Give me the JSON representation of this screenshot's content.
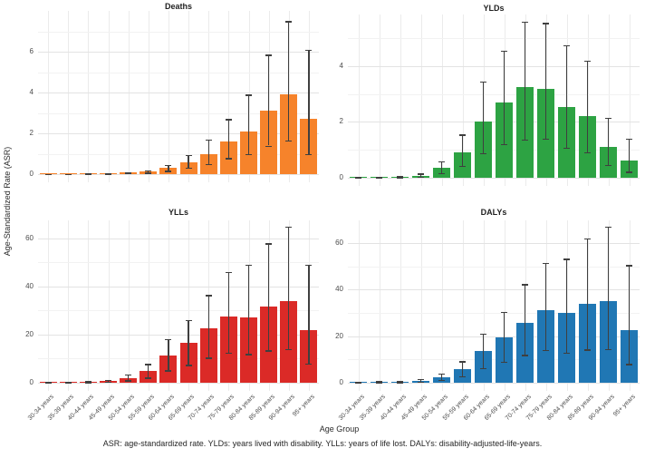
{
  "figure": {
    "y_axis_label": "Age-Standardized Rate (ASR)",
    "x_axis_label": "Age Group",
    "caption": "ASR: age-standardized rate. YLDs: years lived with disability. YLLs: years of life lost. DALYs: disability-adjusted-life-years."
  },
  "categories": [
    "30-34 years",
    "35-39 years",
    "40-44 years",
    "45-49 years",
    "50-54 years",
    "55-59 years",
    "60-64 years",
    "65-69 years",
    "70-74 years",
    "75-79 years",
    "80-84 years",
    "85-89 years",
    "90-94 years",
    "95+ years"
  ],
  "colors": {
    "error_bar": "#3F3F3F",
    "grid_major": "#E3E3E3",
    "grid_minor": "#F2F2F2",
    "tick_text": "#4D4D4D"
  },
  "chart_data": [
    {
      "id": "deaths",
      "type": "bar",
      "title": "Deaths",
      "color": "#F6832B",
      "ymax": 8.0,
      "yticks": [
        0,
        2,
        4,
        6
      ],
      "yticks_minor": [
        1,
        3,
        5,
        7
      ],
      "values": [
        0.01,
        0.01,
        0.02,
        0.04,
        0.07,
        0.12,
        0.3,
        0.6,
        1.0,
        1.6,
        2.1,
        3.1,
        3.9,
        2.7
      ],
      "ci_low": [
        0.01,
        0.01,
        0.01,
        0.02,
        0.04,
        0.07,
        0.16,
        0.32,
        0.5,
        0.78,
        1.0,
        1.4,
        1.65,
        1.0
      ],
      "ci_high": [
        0.02,
        0.02,
        0.03,
        0.06,
        0.1,
        0.18,
        0.45,
        0.95,
        1.7,
        2.7,
        3.9,
        5.85,
        7.5,
        6.1
      ],
      "show_x_labels": false
    },
    {
      "id": "ylds",
      "type": "bar",
      "title": "YLDs",
      "color": "#2DA343",
      "ymax": 5.85,
      "yticks": [
        0,
        2,
        4
      ],
      "yticks_minor": [
        1,
        3,
        5
      ],
      "values": [
        0.01,
        0.02,
        0.03,
        0.08,
        0.35,
        0.9,
        2.0,
        2.7,
        3.25,
        3.2,
        2.55,
        2.2,
        1.1,
        0.62
      ],
      "ci_low": [
        0.01,
        0.01,
        0.02,
        0.04,
        0.16,
        0.42,
        0.88,
        1.2,
        1.38,
        1.4,
        1.08,
        0.92,
        0.46,
        0.22
      ],
      "ci_high": [
        0.02,
        0.03,
        0.05,
        0.15,
        0.6,
        1.55,
        3.45,
        4.55,
        5.6,
        5.55,
        4.75,
        4.2,
        2.15,
        1.4
      ],
      "show_x_labels": false
    },
    {
      "id": "ylls",
      "type": "bar",
      "title": "YLLs",
      "color": "#DB2A27",
      "ymax": 67.5,
      "yticks": [
        0,
        20,
        40,
        60
      ],
      "yticks_minor": [
        10,
        30,
        50
      ],
      "values": [
        0.2,
        0.3,
        0.45,
        0.8,
        2.0,
        5.0,
        11.5,
        16.5,
        22.5,
        27.5,
        27.0,
        31.5,
        34.0,
        22.0
      ],
      "ci_low": [
        0.1,
        0.15,
        0.25,
        0.4,
        1.0,
        2.2,
        5.2,
        7.5,
        10.5,
        12.5,
        12.0,
        13.5,
        14.0,
        8.0
      ],
      "ci_high": [
        0.35,
        0.5,
        0.8,
        1.3,
        3.5,
        7.8,
        18.2,
        26.0,
        36.5,
        46.0,
        49.0,
        58.0,
        65.0,
        49.0
      ],
      "show_x_labels": true
    },
    {
      "id": "dalys",
      "type": "bar",
      "title": "DALYs",
      "color": "#2077B4",
      "ymax": 69.7,
      "yticks": [
        0,
        20,
        40,
        60
      ],
      "yticks_minor": [
        10,
        30,
        50
      ],
      "values": [
        0.25,
        0.35,
        0.55,
        0.95,
        2.5,
        6.0,
        13.8,
        19.5,
        25.8,
        31.0,
        30.0,
        33.8,
        35.0,
        22.5
      ],
      "ci_low": [
        0.12,
        0.2,
        0.3,
        0.5,
        1.2,
        2.8,
        6.2,
        9.0,
        12.0,
        14.0,
        13.0,
        14.3,
        14.5,
        8.0
      ],
      "ci_high": [
        0.45,
        0.6,
        0.95,
        1.6,
        4.0,
        9.2,
        21.2,
        30.5,
        42.3,
        51.5,
        53.2,
        62.0,
        67.0,
        50.5
      ],
      "show_x_labels": true
    }
  ]
}
